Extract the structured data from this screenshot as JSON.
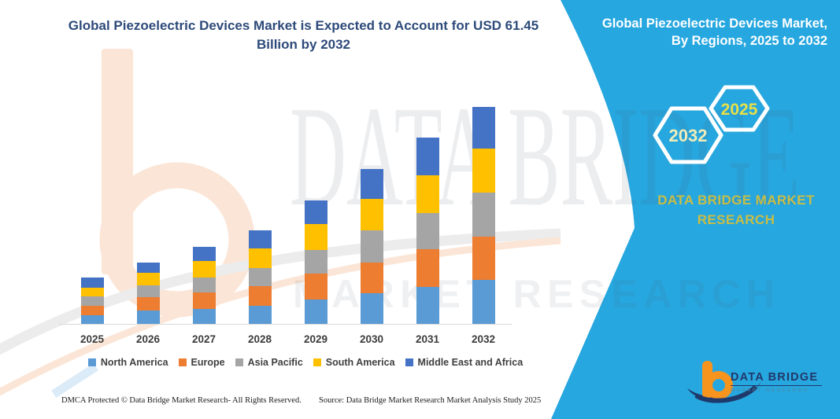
{
  "title": {
    "line1": "Global Piezoelectric Devices Market is Expected to Account for USD 61.45",
    "line2": "Billion by 2032"
  },
  "right_panel": {
    "accent_color": "#27A7DF",
    "heading_line1": "Global Piezoelectric Devices Market,",
    "heading_line2": "By Regions, 2025 to 2032",
    "hexagons": {
      "back_year": "2032",
      "front_year": "2025"
    },
    "caption_line1": "DATA BRIDGE MARKET",
    "caption_line2": "RESEARCH",
    "logo": {
      "name": "DATA BRIDGE",
      "tagline": "MARKET RESEARCH"
    }
  },
  "watermark": {
    "line1": "DATA BRIDGE",
    "line2": "MARKET RESEARCH"
  },
  "footer": {
    "dmca": "DMCA Protected © Data Bridge Market Research-  All Rights Reserved.",
    "source": "Source: Data Bridge Market Research  Market Analysis Study 2025"
  },
  "chart_data": {
    "type": "bar",
    "stacked": true,
    "title": "Global Piezoelectric Devices Market is Expected to Account for USD 61.45 Billion by 2032",
    "unit": "USD billion",
    "categories": [
      "2025",
      "2026",
      "2027",
      "2028",
      "2029",
      "2030",
      "2031",
      "2032"
    ],
    "series": [
      {
        "name": "North America",
        "color": "#5B9BD5",
        "values": [
          2.4,
          3.8,
          4.2,
          5.1,
          6.9,
          8.7,
          10.5,
          12.5
        ]
      },
      {
        "name": "Europe",
        "color": "#ED7D31",
        "values": [
          2.7,
          3.8,
          4.7,
          5.6,
          7.3,
          8.7,
          10.7,
          12.2
        ]
      },
      {
        "name": "Asia Pacific",
        "color": "#A5A5A5",
        "values": [
          2.7,
          3.3,
          4.2,
          5.1,
          6.7,
          9.1,
          10.2,
          12.5
        ]
      },
      {
        "name": "South America",
        "color": "#FFC000",
        "values": [
          2.4,
          3.6,
          4.7,
          5.6,
          7.3,
          8.9,
          10.7,
          12.5
        ]
      },
      {
        "name": "Middle East and Africa",
        "color": "#4472C4",
        "values": [
          2.9,
          2.9,
          4.0,
          5.1,
          6.7,
          8.5,
          10.7,
          11.8
        ]
      }
    ],
    "totals": [
      13.1,
      17.4,
      21.8,
      26.5,
      34.9,
      43.9,
      52.8,
      61.45
    ],
    "ylim": [
      0,
      65
    ],
    "xlabel": "",
    "ylabel": "",
    "value_axis_visible": false,
    "gridlines": false,
    "legend_position": "bottom"
  }
}
